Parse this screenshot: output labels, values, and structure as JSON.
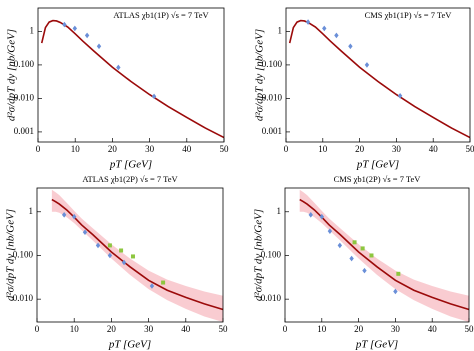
{
  "chart_data": [
    {
      "type": "line",
      "title": "ATLAS  χb1(1P)  √s = 7 TeV",
      "xlabel": "pT [GeV]",
      "ylabel": "d²σ/dpT dy  [nb/GeV]",
      "xlim": [
        0,
        50
      ],
      "xticks": [
        0,
        10,
        20,
        30,
        40,
        50
      ],
      "ylim": [
        0.0005,
        5
      ],
      "log_y": true,
      "yticks": [
        1,
        {
          "value": 0.1,
          "label": "0.100"
        },
        {
          "value": 0.01,
          "label": "0.010"
        },
        {
          "value": 0.001,
          "label": "0.001"
        }
      ],
      "series": [
        {
          "style": "line",
          "color": "#9b0a0a",
          "x": [
            1,
            2,
            3,
            4,
            5,
            6,
            8,
            10,
            12,
            15,
            20,
            25,
            30,
            35,
            40,
            45,
            50
          ],
          "values": [
            0.45,
            1.3,
            1.9,
            2.1,
            2.05,
            1.85,
            1.35,
            0.85,
            0.52,
            0.26,
            0.085,
            0.032,
            0.013,
            0.0057,
            0.0027,
            0.0013,
            0.00068
          ]
        },
        {
          "style": "diamond",
          "color": "#6a8fd8",
          "x": [
            7.1,
            9.9,
            13.2,
            16.4,
            21.6,
            31.2
          ],
          "values": [
            1.6,
            1.23,
            0.76,
            0.36,
            0.084,
            0.0115
          ]
        }
      ]
    },
    {
      "type": "line",
      "title": "CMS  χb1(1P)  √s = 7 TeV",
      "xlabel": "pT [GeV]",
      "ylabel": "d²σ/dpT dy  [nb/GeV]",
      "xlim": [
        0,
        50
      ],
      "xticks": [
        0,
        10,
        20,
        30,
        40,
        50
      ],
      "ylim": [
        0.0005,
        5
      ],
      "log_y": true,
      "yticks": [
        1,
        {
          "value": 0.1,
          "label": "0.100"
        },
        {
          "value": 0.01,
          "label": "0.010"
        },
        {
          "value": 0.001,
          "label": "0.001"
        }
      ],
      "series": [
        {
          "style": "line",
          "color": "#9b0a0a",
          "x": [
            1,
            2,
            3,
            4,
            5,
            6,
            8,
            10,
            12,
            15,
            20,
            25,
            30,
            35,
            40,
            45,
            50
          ],
          "values": [
            0.45,
            1.3,
            1.9,
            2.1,
            2.05,
            1.85,
            1.35,
            0.85,
            0.52,
            0.26,
            0.085,
            0.032,
            0.013,
            0.0057,
            0.0027,
            0.0013,
            0.00068
          ]
        },
        {
          "style": "diamond",
          "color": "#6a8fd8",
          "x": [
            6,
            10.4,
            13.7,
            17.5,
            22,
            31
          ],
          "values": [
            1.9,
            1.23,
            0.76,
            0.36,
            0.1,
            0.012
          ]
        }
      ]
    },
    {
      "type": "line",
      "title": "ATLAS  χb1(2P)  √s = 7 TeV",
      "xlabel": "pT [GeV]",
      "ylabel": "d²σ/dpT dy  [nb/GeV]",
      "xlim": [
        0,
        50
      ],
      "xticks": [
        0,
        10,
        20,
        30,
        40,
        50
      ],
      "ylim": [
        0.003,
        3.5
      ],
      "log_y": true,
      "yticks": [
        1,
        {
          "value": 0.1,
          "label": "0.100"
        },
        {
          "value": 0.01,
          "label": "0.010"
        }
      ],
      "series": [
        {
          "style": "band",
          "color": "#f4a3ab",
          "x": [
            4,
            5,
            6,
            8,
            10,
            12,
            15,
            20,
            25,
            30,
            35,
            40,
            45,
            50
          ],
          "low": [
            1.0,
            1.0,
            0.95,
            0.75,
            0.55,
            0.38,
            0.22,
            0.085,
            0.036,
            0.017,
            0.0095,
            0.006,
            0.004,
            0.003
          ],
          "high": [
            3.2,
            2.8,
            2.4,
            1.6,
            1.05,
            0.7,
            0.42,
            0.18,
            0.085,
            0.045,
            0.028,
            0.02,
            0.015,
            0.012
          ]
        },
        {
          "style": "line",
          "color": "#9b0a0a",
          "x": [
            4,
            5,
            6,
            8,
            10,
            12,
            15,
            20,
            25,
            30,
            35,
            40,
            45,
            50
          ],
          "values": [
            1.9,
            1.7,
            1.5,
            1.1,
            0.75,
            0.5,
            0.3,
            0.12,
            0.055,
            0.027,
            0.016,
            0.011,
            0.0078,
            0.0058
          ]
        },
        {
          "style": "diamond",
          "color": "#6a8fd8",
          "x": [
            7.3,
            10,
            12.9,
            16.4,
            19.6,
            23.4,
            30.9
          ],
          "values": [
            0.85,
            0.77,
            0.34,
            0.17,
            0.1,
            0.069,
            0.02
          ]
        },
        {
          "style": "square",
          "color": "#8dc63f",
          "x": [
            19.6,
            22.6,
            25.8,
            33.9
          ],
          "values": [
            0.17,
            0.13,
            0.095,
            0.024
          ]
        }
      ]
    },
    {
      "type": "line",
      "title": "CMS  χb1(2P)  √s = 7 TeV",
      "xlabel": "pT [GeV]",
      "ylabel": "d²σ/dpT dy  [nb/GeV]",
      "xlim": [
        0,
        50
      ],
      "xticks": [
        0,
        10,
        20,
        30,
        40,
        50
      ],
      "ylim": [
        0.003,
        3.5
      ],
      "log_y": true,
      "yticks": [
        1,
        {
          "value": 0.1,
          "label": "0.100"
        },
        {
          "value": 0.01,
          "label": "0.010"
        }
      ],
      "series": [
        {
          "style": "band",
          "color": "#f4a3ab",
          "x": [
            4,
            5,
            6,
            8,
            10,
            12,
            15,
            20,
            25,
            30,
            35,
            40,
            45,
            50
          ],
          "low": [
            1.0,
            1.0,
            0.95,
            0.75,
            0.55,
            0.38,
            0.22,
            0.085,
            0.036,
            0.017,
            0.0095,
            0.006,
            0.004,
            0.003
          ],
          "high": [
            3.2,
            2.8,
            2.4,
            1.6,
            1.05,
            0.7,
            0.42,
            0.18,
            0.085,
            0.045,
            0.028,
            0.02,
            0.015,
            0.012
          ]
        },
        {
          "style": "line",
          "color": "#9b0a0a",
          "x": [
            4,
            5,
            6,
            8,
            10,
            12,
            15,
            20,
            25,
            30,
            35,
            40,
            45,
            50
          ],
          "values": [
            1.9,
            1.7,
            1.5,
            1.1,
            0.75,
            0.5,
            0.3,
            0.12,
            0.055,
            0.027,
            0.016,
            0.011,
            0.0078,
            0.0058
          ]
        },
        {
          "style": "diamond",
          "color": "#6a8fd8",
          "x": [
            7,
            10,
            12.2,
            14.9,
            18.1,
            21.6,
            30
          ],
          "values": [
            0.85,
            0.77,
            0.36,
            0.17,
            0.085,
            0.045,
            0.015
          ]
        },
        {
          "style": "square",
          "color": "#8dc63f",
          "x": [
            18.9,
            21.1,
            23.5,
            30.8
          ],
          "values": [
            0.2,
            0.145,
            0.1,
            0.038
          ]
        }
      ]
    }
  ]
}
